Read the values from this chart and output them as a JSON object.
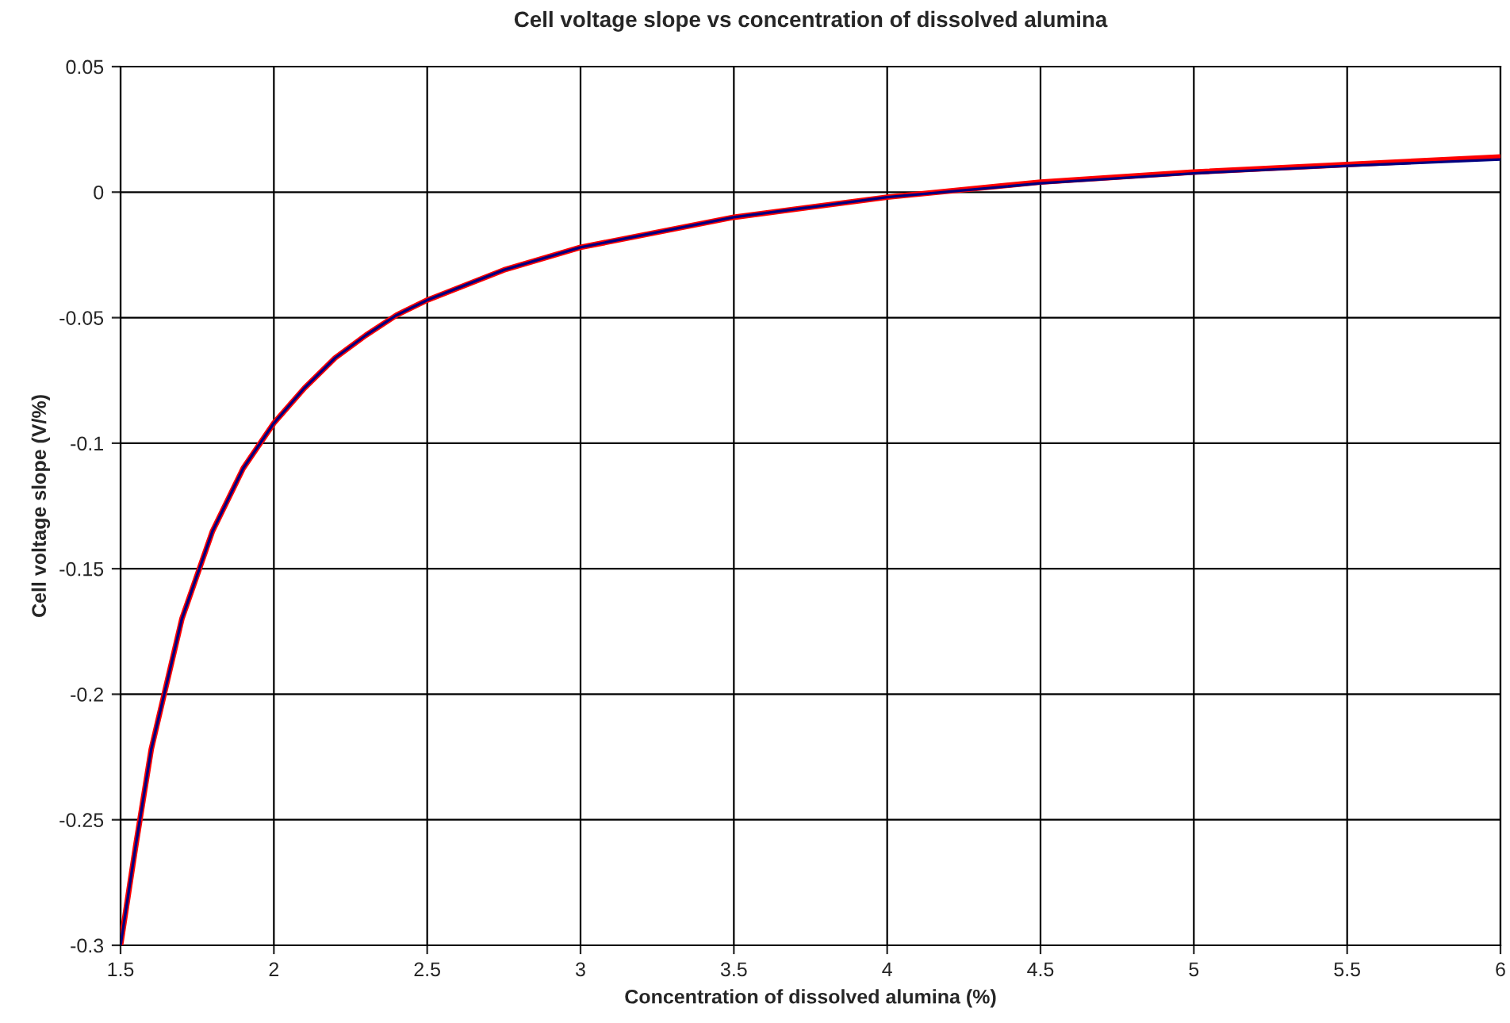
{
  "chart_data": {
    "type": "line",
    "title": "Cell voltage slope vs concentration of dissolved alumina",
    "xlabel": "Concentration of dissolved alumina (%)",
    "ylabel": "Cell voltage slope (V/%)",
    "xlim": [
      1.5,
      6
    ],
    "xticks": [
      1.5,
      2,
      2.5,
      3,
      3.5,
      4,
      4.5,
      5,
      5.5,
      6
    ],
    "ylim": [
      -0.3,
      0.05
    ],
    "yticks": [
      -0.3,
      -0.25,
      -0.2,
      -0.15,
      -0.1,
      -0.05,
      0,
      0.05
    ],
    "grid": true,
    "marker": "none",
    "line_style": "solid",
    "x": [
      1.5,
      1.55,
      1.6,
      1.7,
      1.8,
      1.9,
      2.0,
      2.1,
      2.2,
      2.3,
      2.4,
      2.5,
      2.75,
      3.0,
      3.5,
      4.0,
      4.5,
      5.0,
      5.5,
      6.0
    ],
    "series": [
      {
        "color": "#000080",
        "values": [
          -0.3,
          -0.26,
          -0.222,
          -0.17,
          -0.135,
          -0.11,
          -0.092,
          -0.078,
          -0.066,
          -0.057,
          -0.049,
          -0.043,
          -0.031,
          -0.022,
          -0.01,
          -0.002,
          0.0035,
          0.0075,
          0.0105,
          0.013
        ]
      },
      {
        "color": "#ff0000",
        "values": [
          -0.3,
          -0.26,
          -0.222,
          -0.17,
          -0.135,
          -0.11,
          -0.092,
          -0.078,
          -0.066,
          -0.057,
          -0.049,
          -0.043,
          -0.031,
          -0.022,
          -0.01,
          -0.002,
          0.004,
          0.008,
          0.011,
          0.014
        ]
      }
    ]
  }
}
